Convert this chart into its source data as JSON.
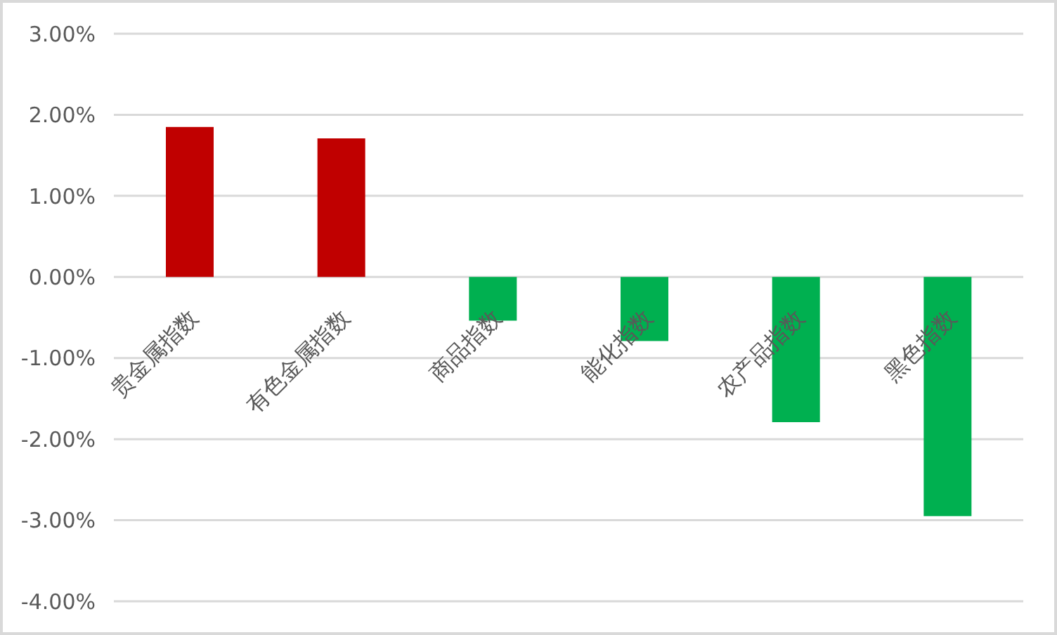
{
  "chart_data": {
    "type": "bar",
    "categories": [
      "贵金属指数",
      "有色金属指数",
      "商品指数",
      "能化指数",
      "农产品指数",
      "黑色指数"
    ],
    "values": [
      1.85,
      1.71,
      -0.54,
      -0.79,
      -1.79,
      -2.95
    ],
    "colors": [
      "#c00000",
      "#c00000",
      "#00b050",
      "#00b050",
      "#00b050",
      "#00b050"
    ],
    "ylim": [
      -4,
      3
    ],
    "yticks": [
      {
        "value": -4,
        "label": "-4.00%"
      },
      {
        "value": -3,
        "label": "-3.00%"
      },
      {
        "value": -2,
        "label": "-2.00%"
      },
      {
        "value": -1,
        "label": "-1.00%"
      },
      {
        "value": 0,
        "label": "0.00%"
      },
      {
        "value": 1,
        "label": "1.00%"
      },
      {
        "value": 2,
        "label": "2.00%"
      },
      {
        "value": 3,
        "label": "3.00%"
      }
    ],
    "grid": "y"
  }
}
